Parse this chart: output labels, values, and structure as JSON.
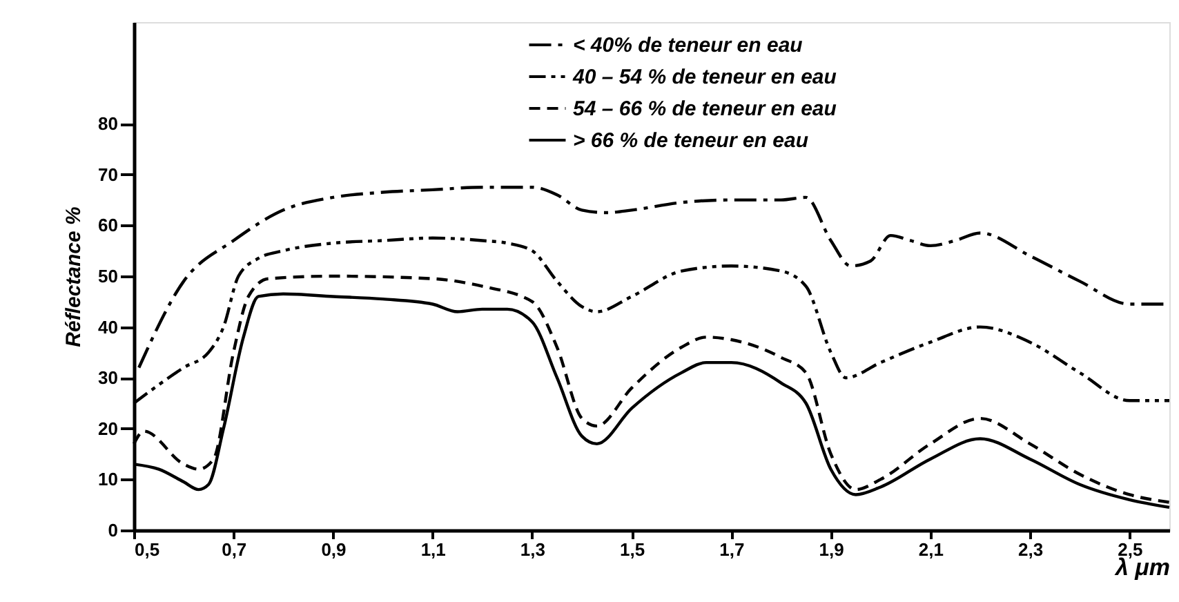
{
  "chart_data": {
    "type": "line",
    "xlabel": "λ μm",
    "ylabel": "Réflectance %",
    "xlim": [
      0.5,
      2.58
    ],
    "ylim": [
      0,
      100
    ],
    "xticks": [
      {
        "value": 0.5,
        "label": "0,5"
      },
      {
        "value": 0.7,
        "label": "0,7"
      },
      {
        "value": 0.9,
        "label": "0,9"
      },
      {
        "value": 1.1,
        "label": "1,1"
      },
      {
        "value": 1.3,
        "label": "1,3"
      },
      {
        "value": 1.5,
        "label": "1,5"
      },
      {
        "value": 1.7,
        "label": "1,7"
      },
      {
        "value": 1.9,
        "label": "1,9"
      },
      {
        "value": 2.1,
        "label": "2,1"
      },
      {
        "value": 2.3,
        "label": "2,3"
      },
      {
        "value": 2.5,
        "label": "2,5"
      }
    ],
    "yticks": [
      0,
      10,
      20,
      30,
      40,
      50,
      60,
      70,
      80
    ],
    "grid": false,
    "legend": "top",
    "marker": "none",
    "series": [
      {
        "name": "< 40% de teneur en eau",
        "color": "#000000",
        "line_style": "dashdot",
        "x": [
          0.51,
          0.6,
          0.7,
          0.8,
          0.9,
          1.0,
          1.1,
          1.2,
          1.3,
          1.35,
          1.4,
          1.45,
          1.5,
          1.6,
          1.7,
          1.8,
          1.85,
          1.9,
          1.94,
          1.98,
          2.02,
          2.06,
          2.1,
          2.15,
          2.2,
          2.3,
          2.4,
          2.5,
          2.58
        ],
        "values": [
          32,
          49,
          57,
          63,
          65.5,
          66.5,
          67,
          67.5,
          67.5,
          66,
          63,
          62.5,
          63,
          64.5,
          65,
          65,
          65.5,
          57,
          52,
          53,
          58,
          57,
          56,
          57,
          58.5,
          54,
          49,
          44.5,
          44.5
        ]
      },
      {
        "name": "40 – 54 % de teneur en eau",
        "color": "#000000",
        "line_style": "dashdotdot",
        "x": [
          0.5,
          0.6,
          0.65,
          0.68,
          0.71,
          0.75,
          0.8,
          0.9,
          1.0,
          1.1,
          1.2,
          1.25,
          1.3,
          1.35,
          1.4,
          1.43,
          1.5,
          1.6,
          1.7,
          1.8,
          1.85,
          1.9,
          1.93,
          2.0,
          2.1,
          2.2,
          2.3,
          2.4,
          2.5,
          2.58
        ],
        "values": [
          25,
          32,
          35,
          40,
          50,
          53.5,
          55,
          56.5,
          57,
          57.5,
          57,
          56.5,
          55,
          49,
          44,
          43,
          46,
          51,
          52,
          51,
          48,
          35,
          30,
          33,
          37,
          40,
          37,
          31,
          25.5,
          25.5
        ]
      },
      {
        "name": "54 – 66 % de teneur en eau",
        "color": "#000000",
        "line_style": "dashed",
        "x": [
          0.5,
          0.52,
          0.6,
          0.63,
          0.66,
          0.7,
          0.73,
          0.77,
          0.9,
          1.1,
          1.2,
          1.3,
          1.35,
          1.4,
          1.43,
          1.5,
          1.6,
          1.65,
          1.7,
          1.8,
          1.85,
          1.9,
          1.95,
          2.0,
          2.1,
          2.2,
          2.3,
          2.4,
          2.5,
          2.58
        ],
        "values": [
          17,
          19.5,
          13,
          12,
          14,
          35,
          46,
          49.5,
          50,
          49.5,
          48,
          45,
          36,
          22,
          20.5,
          28,
          36,
          38,
          37.5,
          34,
          31,
          15,
          8,
          10,
          17,
          22,
          17,
          11,
          7,
          5.5
        ]
      },
      {
        "name": "> 66 % de teneur en eau",
        "color": "#000000",
        "line_style": "solid",
        "x": [
          0.5,
          0.55,
          0.6,
          0.63,
          0.65,
          0.68,
          0.72,
          0.75,
          0.8,
          0.9,
          1.0,
          1.1,
          1.15,
          1.2,
          1.25,
          1.3,
          1.35,
          1.4,
          1.43,
          1.5,
          1.6,
          1.65,
          1.7,
          1.8,
          1.85,
          1.9,
          1.95,
          2.0,
          2.1,
          2.2,
          2.3,
          2.4,
          2.5,
          2.58
        ],
        "values": [
          13,
          12,
          9.5,
          8,
          9,
          20,
          38,
          46,
          46.5,
          46,
          45.5,
          44.5,
          43,
          43.5,
          43.5,
          41,
          30,
          18.5,
          17,
          24,
          31,
          33,
          33,
          29,
          25,
          12,
          7,
          8.5,
          14,
          18,
          14,
          9,
          6,
          4.5
        ]
      }
    ]
  }
}
